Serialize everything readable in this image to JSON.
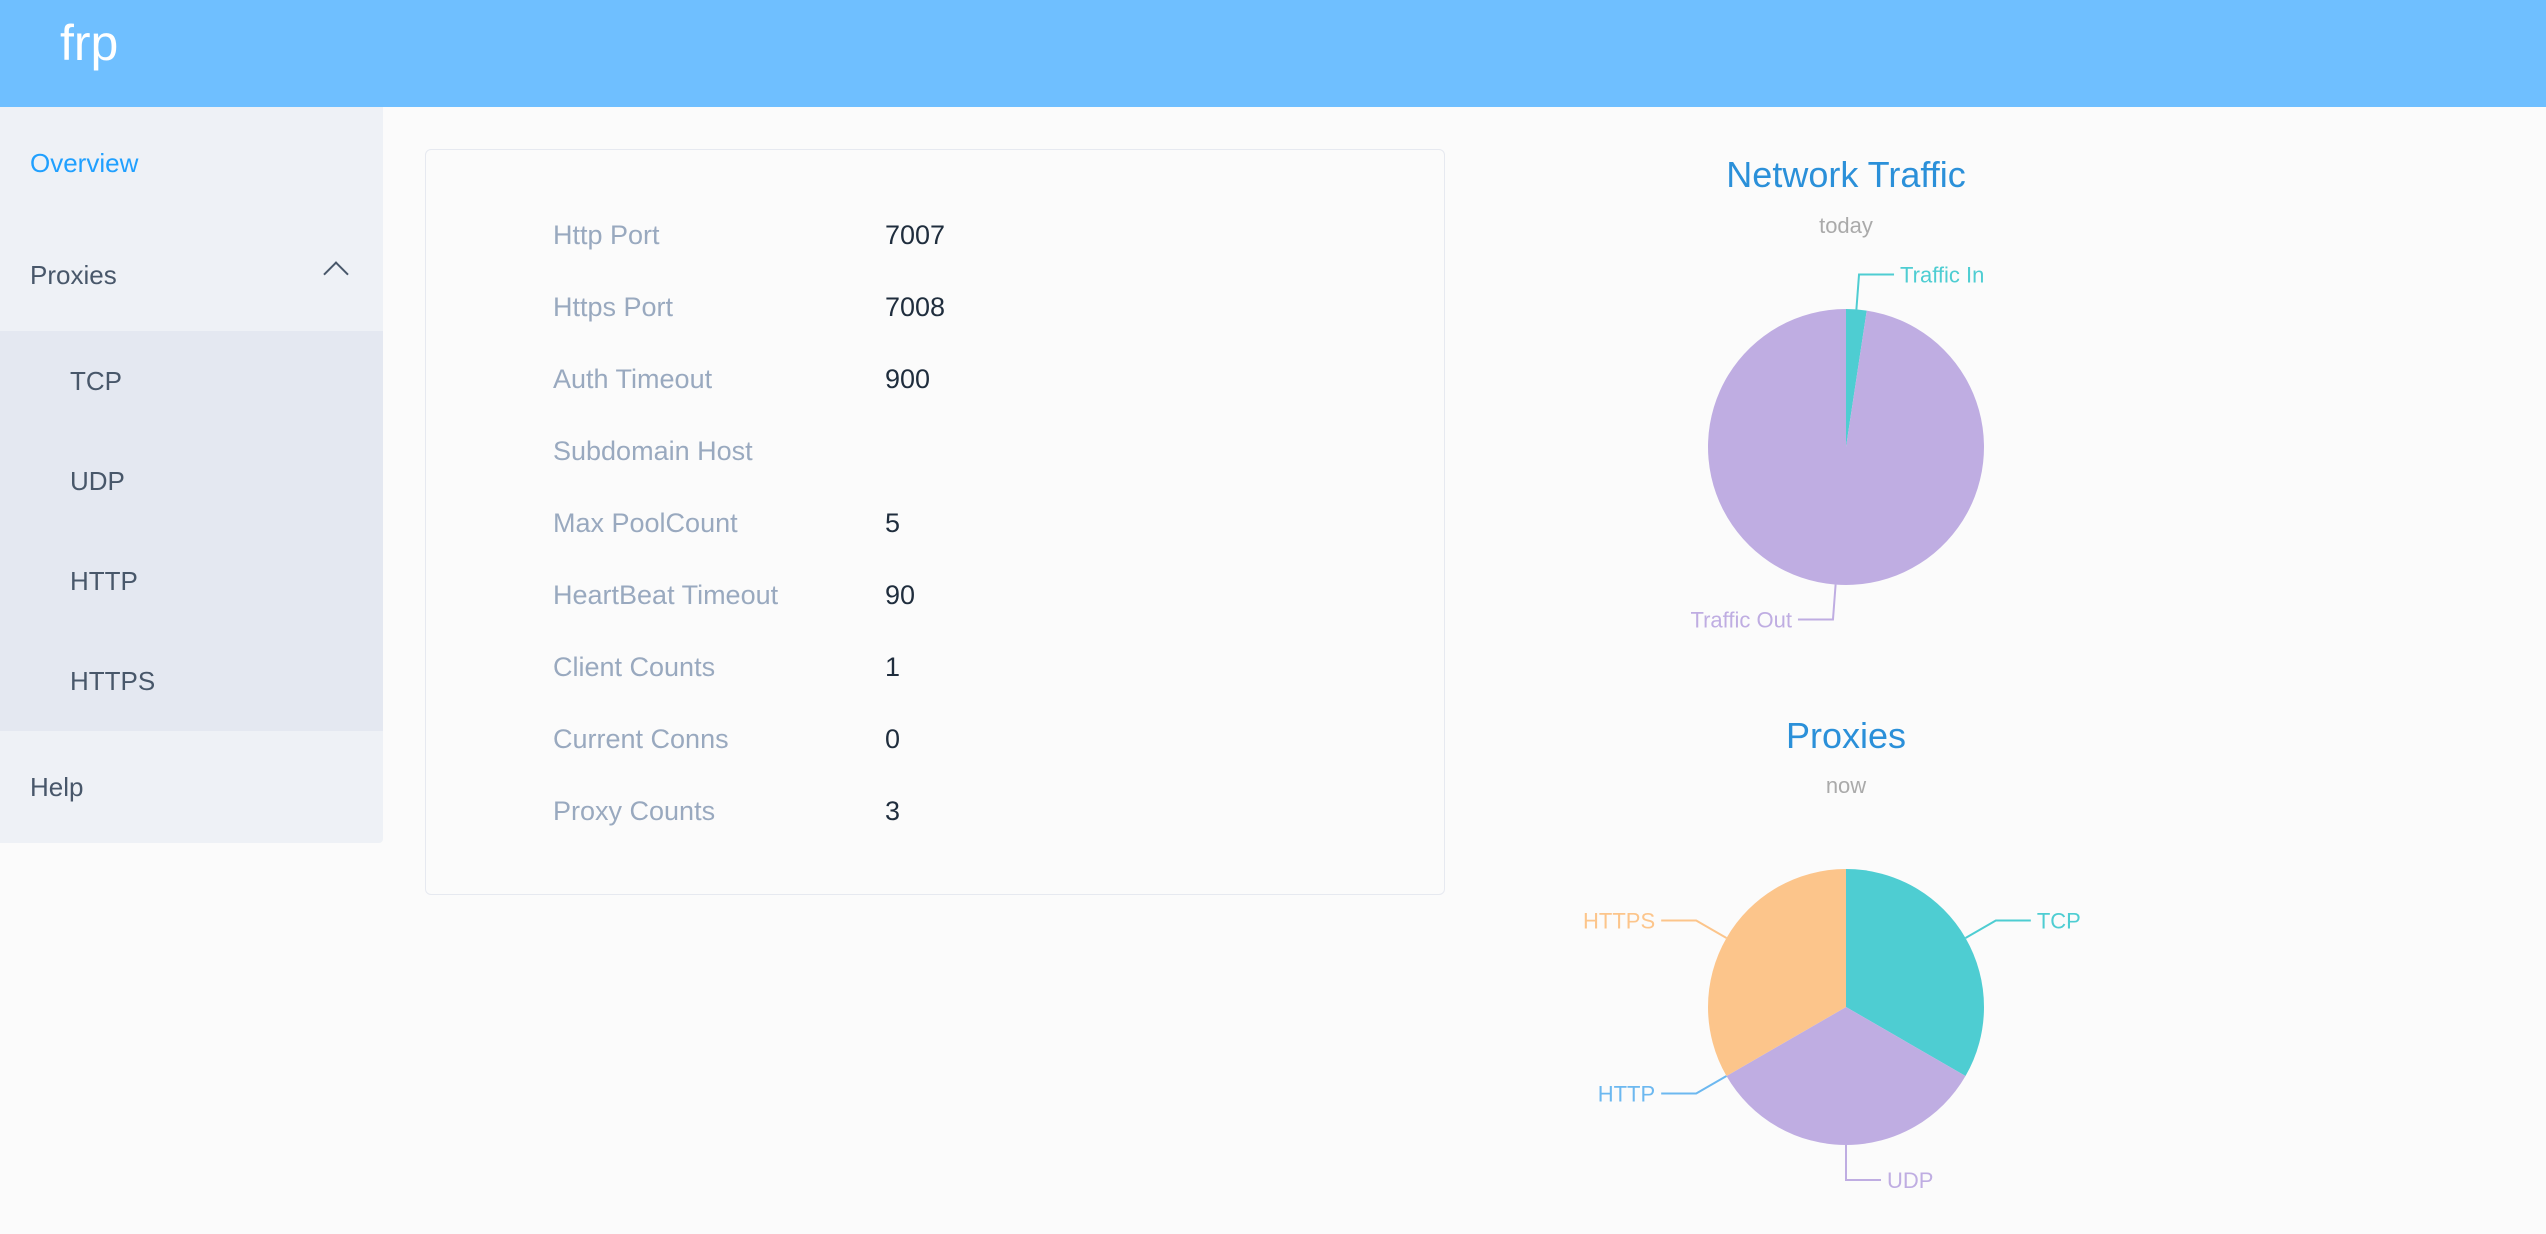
{
  "header": {
    "brand": "frp"
  },
  "sidebar": {
    "items": [
      {
        "label": "Overview",
        "active": true
      },
      {
        "label": "Proxies",
        "expanded": true,
        "children": [
          {
            "label": "TCP"
          },
          {
            "label": "UDP"
          },
          {
            "label": "HTTP"
          },
          {
            "label": "HTTPS"
          }
        ]
      },
      {
        "label": "Help"
      }
    ]
  },
  "overview": {
    "rows": [
      {
        "label": "Http Port",
        "value": "7007"
      },
      {
        "label": "Https Port",
        "value": "7008"
      },
      {
        "label": "Auth Timeout",
        "value": "900"
      },
      {
        "label": "Subdomain Host",
        "value": ""
      },
      {
        "label": "Max PoolCount",
        "value": "5"
      },
      {
        "label": "HeartBeat Timeout",
        "value": "90"
      },
      {
        "label": "Client Counts",
        "value": "1"
      },
      {
        "label": "Current Conns",
        "value": "0"
      },
      {
        "label": "Proxy Counts",
        "value": "3"
      }
    ]
  },
  "colors": {
    "accent": "#20a0ff",
    "header": "#6fbfff",
    "title": "#2b90d9"
  },
  "chart_data": [
    {
      "type": "pie",
      "title": "Network Traffic",
      "subtitle": "today",
      "categories": [
        "Traffic In",
        "Traffic Out"
      ],
      "values": [
        2.4,
        97.6
      ],
      "colors": [
        "#4ecdd2",
        "#bfade2"
      ]
    },
    {
      "type": "pie",
      "title": "Proxies",
      "subtitle": "now",
      "categories": [
        "TCP",
        "UDP",
        "HTTP",
        "HTTPS"
      ],
      "values": [
        1,
        1,
        0,
        1
      ],
      "colors": [
        "#4ecdd2",
        "#bfade2",
        "#6cb8f0",
        "#fcc58b"
      ]
    }
  ]
}
